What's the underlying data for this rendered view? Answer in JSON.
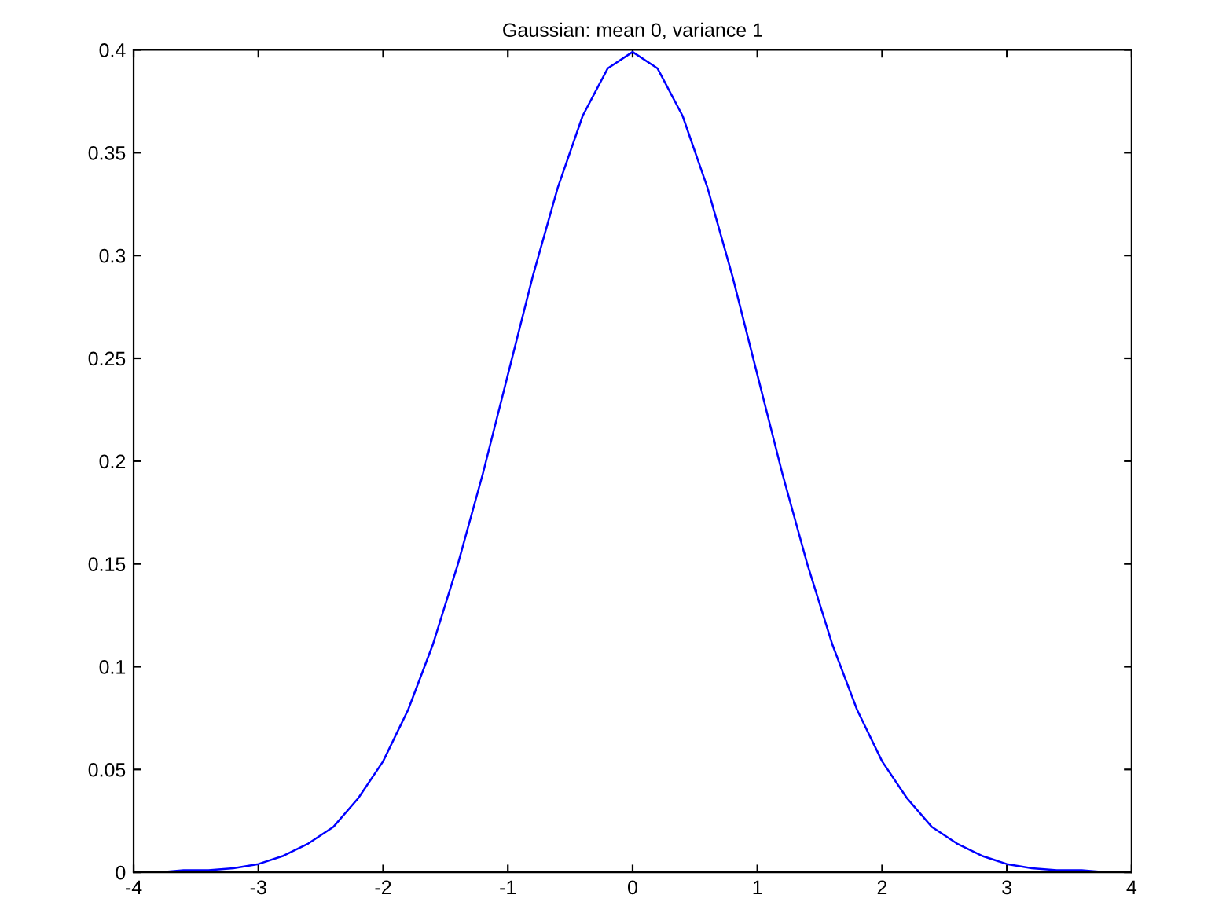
{
  "chart_data": {
    "type": "line",
    "title": "Gaussian: mean 0, variance 1",
    "x": [
      -3.8,
      -3.6,
      -3.4,
      -3.2,
      -3.0,
      -2.8,
      -2.6,
      -2.4,
      -2.2,
      -2.0,
      -1.8,
      -1.6,
      -1.4,
      -1.2,
      -1.0,
      -0.8,
      -0.6,
      -0.4,
      -0.2,
      0,
      0.2,
      0.4,
      0.6,
      0.8,
      1.0,
      1.2,
      1.4,
      1.6,
      1.8,
      2.0,
      2.2,
      2.4,
      2.6,
      2.8,
      3.0,
      3.2,
      3.4,
      3.6,
      3.8
    ],
    "series": [
      {
        "color": "#0000ff",
        "values": [
          0.0,
          0.001,
          0.001,
          0.002,
          0.004,
          0.008,
          0.014,
          0.022,
          0.036,
          0.054,
          0.079,
          0.111,
          0.15,
          0.194,
          0.242,
          0.29,
          0.333,
          0.368,
          0.391,
          0.399,
          0.391,
          0.368,
          0.333,
          0.29,
          0.242,
          0.194,
          0.15,
          0.111,
          0.079,
          0.054,
          0.036,
          0.022,
          0.014,
          0.008,
          0.004,
          0.002,
          0.001,
          0.001,
          0.0
        ]
      }
    ],
    "xlim": [
      -4,
      4
    ],
    "xticks": [
      -4,
      -3,
      -2,
      -1,
      0,
      1,
      2,
      3,
      4
    ],
    "ylim": [
      0,
      0.4
    ],
    "yticks": [
      0,
      0.05,
      0.1,
      0.15,
      0.2,
      0.25,
      0.3,
      0.35,
      0.4
    ],
    "grid": false,
    "marker": "none",
    "line_style": "solid"
  }
}
